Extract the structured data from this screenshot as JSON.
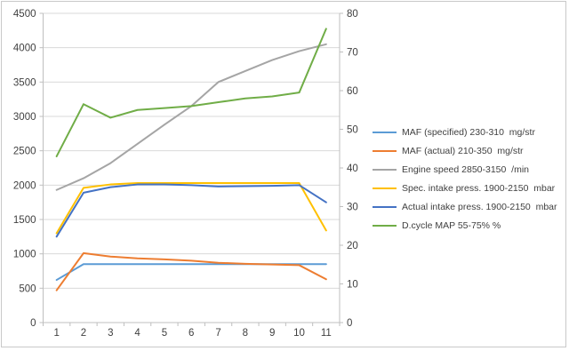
{
  "chart_data": {
    "type": "line",
    "title": "",
    "x": [
      1,
      2,
      3,
      4,
      5,
      6,
      7,
      8,
      9,
      10,
      11
    ],
    "x_ticks": [
      "1",
      "2",
      "3",
      "4",
      "5",
      "6",
      "7",
      "8",
      "9",
      "10",
      "11"
    ],
    "left_axis": {
      "min": 0,
      "max": 4500,
      "step": 500,
      "ticks": [
        "0",
        "500",
        "1000",
        "1500",
        "2000",
        "2500",
        "3000",
        "3500",
        "4000",
        "4500"
      ]
    },
    "right_axis": {
      "min": 0,
      "max": 80,
      "step": 10,
      "ticks": [
        "0",
        "10",
        "20",
        "30",
        "40",
        "50",
        "60",
        "70",
        "80"
      ]
    },
    "grid": true,
    "legend_position": "right",
    "series": [
      {
        "name": "MAF (specified) 230-310  mg/str",
        "color": "#5B9BD5",
        "axis": "left",
        "values": [
          620,
          850,
          850,
          850,
          850,
          850,
          850,
          850,
          850,
          850,
          850
        ]
      },
      {
        "name": "MAF (actual) 210-350  mg/str",
        "color": "#ED7D31",
        "axis": "left",
        "values": [
          470,
          1010,
          960,
          935,
          920,
          900,
          870,
          855,
          845,
          835,
          630
        ]
      },
      {
        "name": "Engine speed 2850-3150  /min",
        "color": "#A5A5A5",
        "axis": "left",
        "values": [
          1930,
          2100,
          2320,
          2600,
          2880,
          3150,
          3500,
          3660,
          3820,
          3950,
          4050
        ]
      },
      {
        "name": "Spec. intake press. 1900-2150  mbar",
        "color": "#FFC000",
        "axis": "left",
        "values": [
          1300,
          1960,
          2010,
          2030,
          2030,
          2030,
          2030,
          2030,
          2030,
          2030,
          1340
        ]
      },
      {
        "name": "Actual intake press. 1900-2150  mbar",
        "color": "#4472C4",
        "axis": "left",
        "values": [
          1250,
          1890,
          1970,
          2010,
          2010,
          2000,
          1980,
          1985,
          1990,
          2000,
          1750
        ]
      },
      {
        "name": "D.cycle MAP 55-75% %",
        "color": "#70AD47",
        "axis": "right",
        "values": [
          43,
          56.5,
          53,
          55,
          55.5,
          56,
          57,
          58,
          58.5,
          59.5,
          76
        ]
      }
    ]
  },
  "colors": {
    "gridline": "#D9D9D9",
    "axis_line": "#BFBFBF",
    "tick_text": "#3F3F3F",
    "frame_border": "#C9C9C9",
    "background": "#FFFFFF"
  }
}
